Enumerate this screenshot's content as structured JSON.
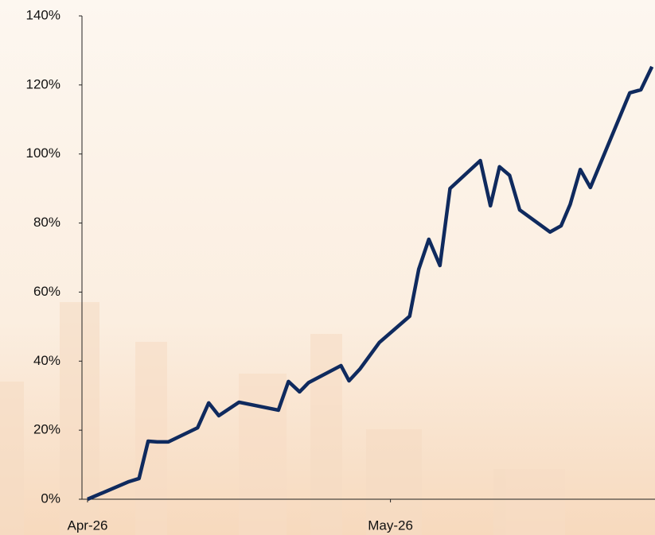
{
  "chart_data": {
    "type": "line",
    "x": [
      0,
      4.1,
      5.1,
      6.0,
      6.9,
      8.0,
      10.9,
      12.0,
      13.0,
      15.0,
      18.9,
      19.9,
      21.0,
      21.9,
      25.1,
      25.9,
      27.0,
      28.9,
      31.9,
      32.8,
      33.8,
      34.9,
      35.9,
      38.9,
      39.9,
      40.8,
      41.8,
      42.8,
      45.8,
      46.9,
      47.8,
      48.8,
      49.8,
      53.7,
      54.8,
      55.9
    ],
    "series": [
      {
        "color": "#0f2a5e",
        "values": [
          0,
          5.1,
          6.0,
          16.8,
          16.6,
          16.6,
          20.7,
          27.9,
          24.2,
          28.1,
          25.8,
          34.1,
          31.1,
          33.8,
          38.7,
          34.3,
          37.8,
          45.4,
          53.0,
          66.6,
          75.3,
          67.7,
          90.0,
          98.1,
          85.0,
          96.3,
          93.8,
          83.8,
          77.4,
          79.2,
          85.4,
          95.5,
          90.3,
          117.7,
          118.6,
          125.3
        ]
      }
    ],
    "xlim": [
      0,
      56.2
    ],
    "xticks": [
      {
        "value": 0,
        "label": "Apr-26"
      },
      {
        "value": 30,
        "label": "May-26"
      }
    ],
    "ylim": [
      0,
      140
    ],
    "yticks": [
      {
        "value": 0,
        "label": "0%"
      },
      {
        "value": 20,
        "label": "20%"
      },
      {
        "value": 40,
        "label": "40%"
      },
      {
        "value": 60,
        "label": "60%"
      },
      {
        "value": 80,
        "label": "80%"
      },
      {
        "value": 100,
        "label": "100%"
      },
      {
        "value": 120,
        "label": "120%"
      },
      {
        "value": 140,
        "label": "140%"
      }
    ],
    "grid": false
  }
}
